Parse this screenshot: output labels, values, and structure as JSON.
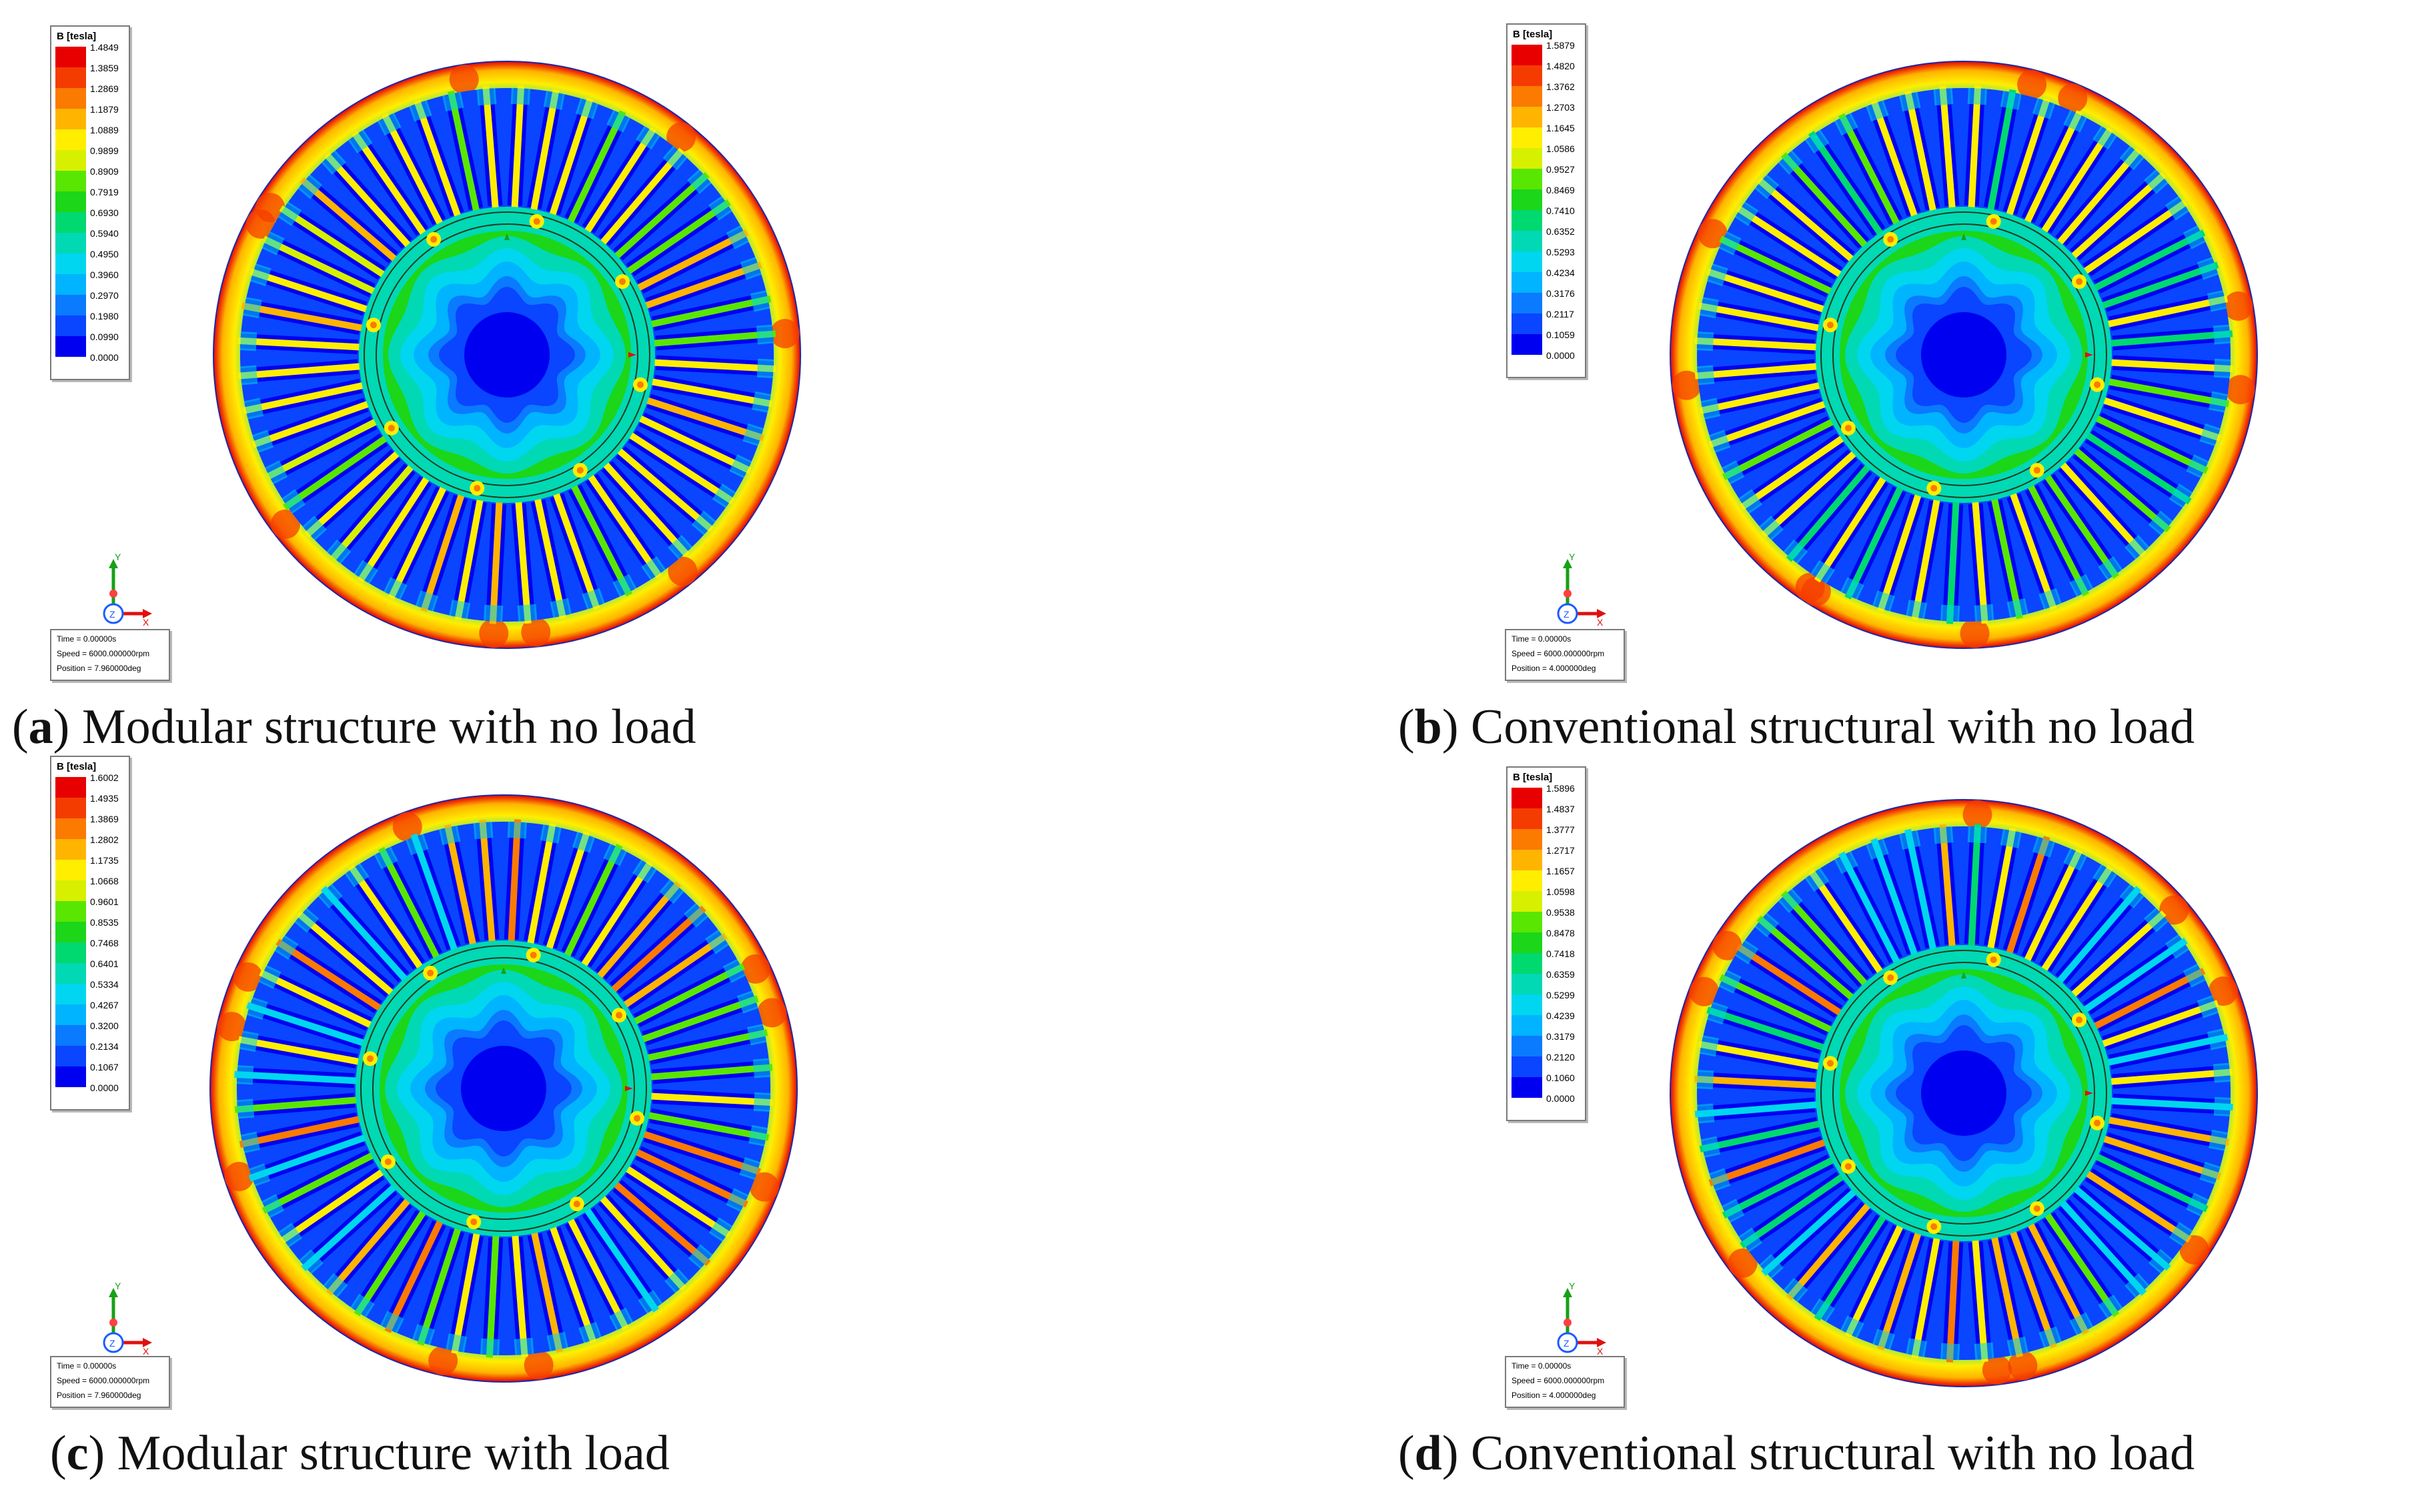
{
  "colorbar_colors": [
    "#e80000",
    "#f53c00",
    "#fb7a00",
    "#ffb400",
    "#ffee00",
    "#d7f000",
    "#59e600",
    "#1cd619",
    "#00d870",
    "#00d9b4",
    "#00d6ef",
    "#00b4ff",
    "#0a7aff",
    "#0a45ff",
    "#0000f0"
  ],
  "panels": [
    {
      "legend": {
        "title": "B [tesla]",
        "ticks": [
          "1.4849",
          "1.3859",
          "1.2869",
          "1.1879",
          "1.0889",
          "0.9899",
          "0.8909",
          "0.7919",
          "0.6930",
          "0.5940",
          "0.4950",
          "0.3960",
          "0.2970",
          "0.1980",
          "0.0990",
          "0.0000"
        ]
      },
      "info": {
        "time": "Time     = 0.00000s",
        "speed": "Speed   = 6000.000000rpm",
        "position": "Position = 7.960000deg"
      },
      "axis": {
        "x": "X",
        "y": "Y",
        "z": "Z"
      },
      "caption": {
        "open": "(",
        "letter": "a",
        "close": ")",
        "text": " Modular structure with no load"
      }
    },
    {
      "legend": {
        "title": "B [tesla]",
        "ticks": [
          "1.5879",
          "1.4820",
          "1.3762",
          "1.2703",
          "1.1645",
          "1.0586",
          "0.9527",
          "0.8469",
          "0.7410",
          "0.6352",
          "0.5293",
          "0.4234",
          "0.3176",
          "0.2117",
          "0.1059",
          "0.0000"
        ]
      },
      "info": {
        "time": "Time     = 0.00000s",
        "speed": "Speed   = 6000.000000rpm",
        "position": "Position = 4.000000deg"
      },
      "axis": {
        "x": "X",
        "y": "Y",
        "z": "Z"
      },
      "caption": {
        "open": "(",
        "letter": "b",
        "close": ")",
        "text": " Conventional structural with no load"
      }
    },
    {
      "legend": {
        "title": "B [tesla]",
        "ticks": [
          "1.6002",
          "1.4935",
          "1.3869",
          "1.2802",
          "1.1735",
          "1.0668",
          "0.9601",
          "0.8535",
          "0.7468",
          "0.6401",
          "0.5334",
          "0.4267",
          "0.3200",
          "0.2134",
          "0.1067",
          "0.0000"
        ]
      },
      "info": {
        "time": "Time     = 0.00000s",
        "speed": "Speed   = 6000.000000rpm",
        "position": "Position = 7.960000deg"
      },
      "axis": {
        "x": "X",
        "y": "Y",
        "z": "Z"
      },
      "caption": {
        "open": "(",
        "letter": "c",
        "close": ")",
        "text": " Modular structure with load"
      }
    },
    {
      "legend": {
        "title": "B [tesla]",
        "ticks": [
          "1.5896",
          "1.4837",
          "1.3777",
          "1.2717",
          "1.1657",
          "1.0598",
          "0.9538",
          "0.8478",
          "0.7418",
          "0.6359",
          "0.5299",
          "0.4239",
          "0.3179",
          "0.2120",
          "0.1060",
          "0.0000"
        ]
      },
      "info": {
        "time": "Time     = 0.00000s",
        "speed": "Speed   = 6000.000000rpm",
        "position": "Position = 4.000000deg"
      },
      "axis": {
        "x": "X",
        "y": "Y",
        "z": "Z"
      },
      "caption": {
        "open": "(",
        "letter": "d",
        "close": ")",
        "text": " Conventional structural with no load"
      }
    }
  ]
}
